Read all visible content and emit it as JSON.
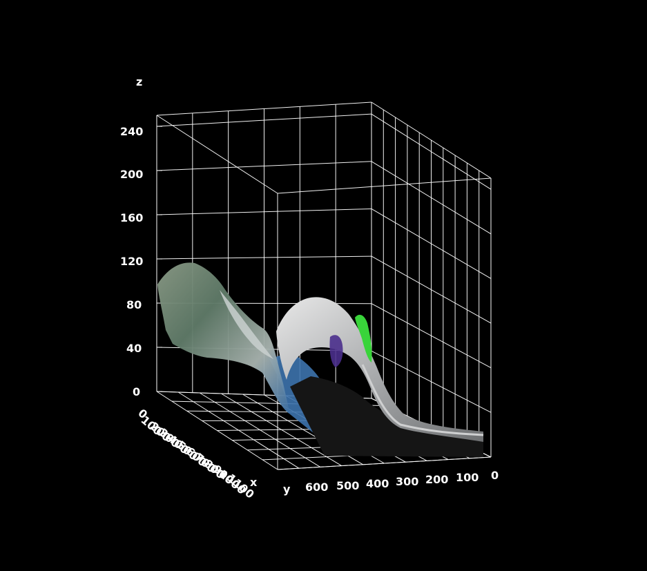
{
  "chart_data": {
    "type": "surface",
    "title": "",
    "xlabel": "x",
    "ylabel": "y",
    "zlabel": "z",
    "x_ticks": [
      "0",
      "100",
      "200",
      "300",
      "400",
      "500",
      "600",
      "700",
      "800",
      "900",
      "1000",
      "1100"
    ],
    "y_ticks": [
      "600",
      "500",
      "400",
      "300",
      "200",
      "100",
      "0"
    ],
    "z_ticks": [
      "0",
      "40",
      "80",
      "120",
      "160",
      "200",
      "240"
    ],
    "xlim": [
      0,
      1100
    ],
    "ylim": [
      0,
      650
    ],
    "zlim": [
      0,
      250
    ],
    "grid": true,
    "background": "#000000",
    "surface_colors": [
      "#6f8a86",
      "#3e6fa8",
      "#c9cbcc",
      "#3ad13a",
      "#1a1a1a"
    ]
  }
}
